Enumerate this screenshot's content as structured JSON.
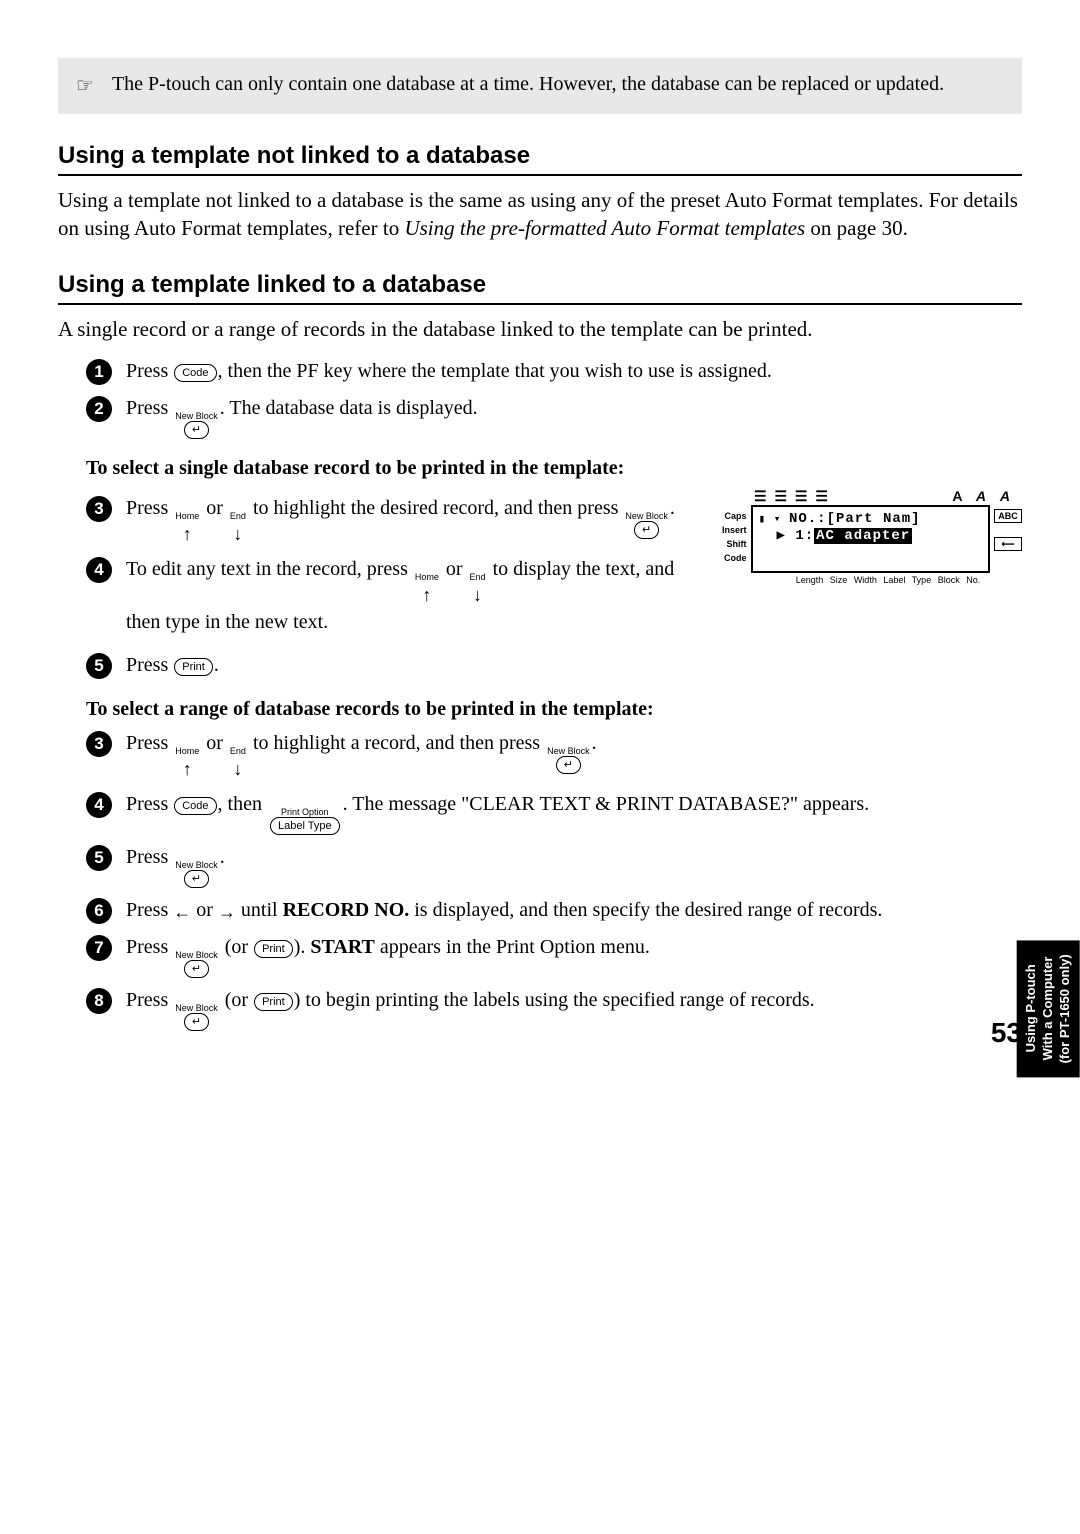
{
  "note": {
    "pointer": "☞",
    "text": "The P-touch can only contain one database at a time. However, the database can be replaced or updated."
  },
  "section1": {
    "heading": "Using a template not linked to a database",
    "body_prefix": "Using a template not linked to a database is the same as using any of the preset Auto Format templates. For details on using Auto Format templates, refer to ",
    "body_ital": "Using the pre-formatted Auto Format templates",
    "body_suffix": " on page 30."
  },
  "section2": {
    "heading": "Using a template linked to a database",
    "intro": "A single record or a range of records in the database linked to the template can be printed."
  },
  "keys": {
    "code": "Code",
    "print": "Print",
    "new_block": "New Block",
    "home": "Home",
    "end": "End",
    "label_type": "Label Type",
    "print_option": "Print Option",
    "enter_sym": "↵",
    "up_sym": "↑",
    "down_sym": "↓",
    "left_sym": "←",
    "right_sym": "→"
  },
  "steps_a": {
    "s1_a": "Press ",
    "s1_b": ", then the PF key where the template that you wish to use is assigned.",
    "s2_a": "Press ",
    "s2_b": ". The database data is displayed."
  },
  "sub1": "To select a single database record to be printed in the template:",
  "steps_b": {
    "s3_a": "Press ",
    "s3_b": " or ",
    "s3_c": " to highlight the desired record, and then press ",
    "s3_d": ".",
    "s4_a": "To edit any text in the record, press ",
    "s4_b": " or ",
    "s4_c": " to display the text, and then type in the new text.",
    "s5_a": "Press ",
    "s5_b": "."
  },
  "sub2": "To select a range of database records to be printed in the template:",
  "steps_c": {
    "s3_a": "Press ",
    "s3_b": " or ",
    "s3_c": " to highlight a record, and then press ",
    "s3_d": ".",
    "s4_a": "Press ",
    "s4_b": ", then ",
    "s4_c": ". The message \"CLEAR TEXT & PRINT DATABASE?\" appears.",
    "s5_a": "Press ",
    "s5_b": ".",
    "s6_a": "Press ",
    "s6_b": " or ",
    "s6_c": " until ",
    "s6_bold": "RECORD NO.",
    "s6_d": " is displayed, and then specify the desired range of records.",
    "s7_a": "Press ",
    "s7_b": " (or ",
    "s7_c": "). ",
    "s7_bold": "START",
    "s7_d": " appears in the Print Option menu.",
    "s8_a": "Press ",
    "s8_b": " (or ",
    "s8_c": ") to begin printing the labels using the specified range of records."
  },
  "lcd": {
    "top_icons": "☰ ☰ ☰ ☰",
    "top_letters": [
      "A",
      "A",
      "A"
    ],
    "left_labels": [
      "Caps",
      "Insert",
      "Shift",
      "Code"
    ],
    "line1_pre": "▮ ▾ ",
    "line1": "NO.:[Part Nam]",
    "line2_pre": "▶  1:",
    "line2_hl": "AC adapter",
    "right_badge1": "ABC",
    "right_badge2": "⟵",
    "bottom": "Length  Size  Width  Label Type  Block No."
  },
  "side_tab": "Using P-touch With a Computer (for PT-1650 only)",
  "page_number": "53"
}
